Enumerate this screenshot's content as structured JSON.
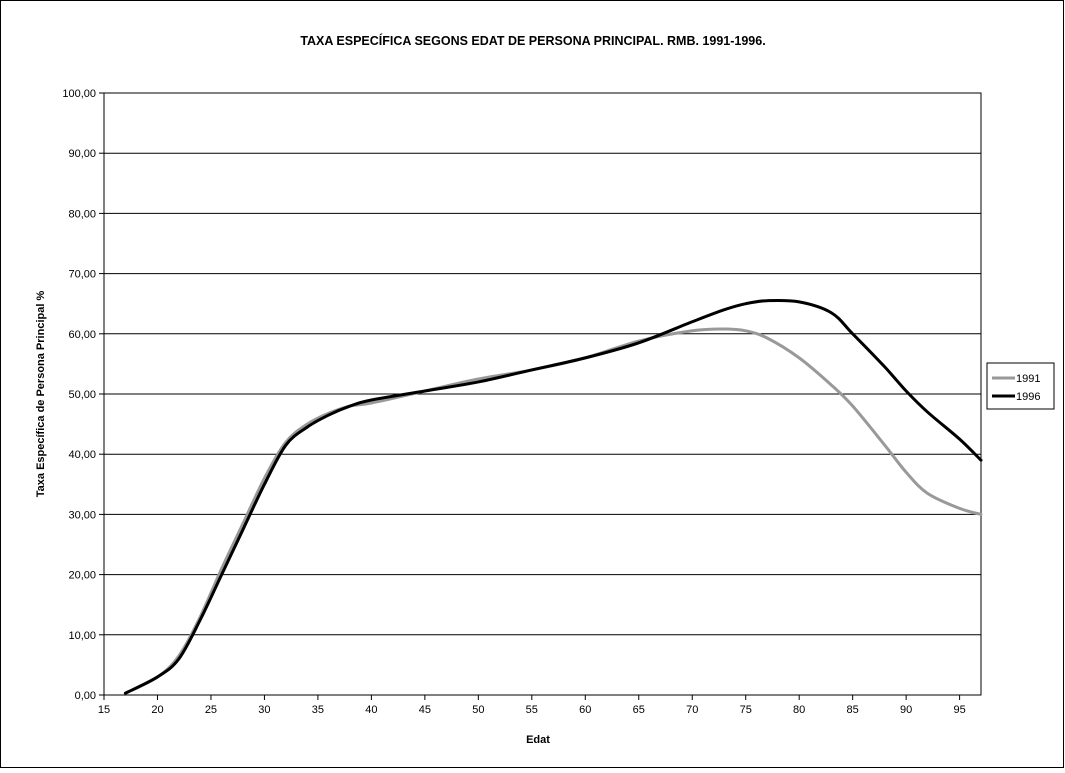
{
  "chart_data": {
    "type": "line",
    "title": "TAXA ESPECÍFICA SEGONS EDAT DE PERSONA PRINCIPAL. RMB. 1991-1996.",
    "xlabel": "Edat",
    "ylabel": "Taxa Específica de Persona Principal %",
    "xlim": [
      15,
      97
    ],
    "ylim": [
      0,
      100
    ],
    "x_ticks": [
      "15",
      "20",
      "25",
      "30",
      "35",
      "40",
      "45",
      "50",
      "55",
      "60",
      "65",
      "70",
      "75",
      "80",
      "85",
      "90",
      "95"
    ],
    "y_ticks": [
      "0,00",
      "10,00",
      "20,00",
      "30,00",
      "40,00",
      "50,00",
      "60,00",
      "70,00",
      "80,00",
      "90,00",
      "100,00"
    ],
    "grid": "horizontal major gridlines",
    "legend_position": "right",
    "series": [
      {
        "name": "1991",
        "color": "#999999",
        "x": [
          17,
          20,
          22,
          24,
          26,
          28,
          30,
          32,
          34,
          36,
          38,
          40,
          45,
          50,
          55,
          60,
          65,
          70,
          73,
          75,
          77,
          80,
          83,
          85,
          88,
          90,
          92,
          95,
          97
        ],
        "y": [
          0.3,
          3.0,
          6.5,
          13.0,
          21.0,
          28.5,
          36.0,
          42.0,
          45.0,
          46.8,
          48.0,
          48.5,
          50.5,
          52.5,
          54.0,
          56.0,
          58.8,
          60.5,
          60.8,
          60.5,
          59.3,
          56.0,
          51.5,
          48.0,
          41.5,
          37.0,
          33.5,
          31.0,
          30.0
        ]
      },
      {
        "name": "1996",
        "color": "#000000",
        "x": [
          17,
          20,
          22,
          24,
          26,
          28,
          30,
          32,
          34,
          36,
          38,
          40,
          45,
          50,
          55,
          60,
          65,
          70,
          73,
          75,
          77,
          80,
          83,
          85,
          88,
          90,
          92,
          95,
          97
        ],
        "y": [
          0.3,
          3.0,
          6.0,
          12.5,
          20.0,
          27.5,
          35.0,
          41.5,
          44.5,
          46.5,
          48.0,
          49.0,
          50.5,
          52.0,
          54.0,
          56.0,
          58.5,
          62.0,
          64.0,
          65.0,
          65.5,
          65.3,
          63.5,
          60.0,
          54.5,
          50.5,
          47.0,
          42.5,
          39.0
        ]
      }
    ]
  }
}
